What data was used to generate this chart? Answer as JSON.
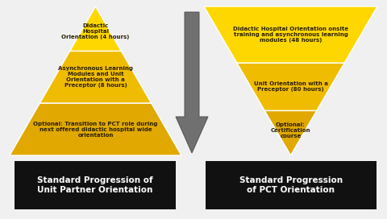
{
  "bg_color": "#f0f0f0",
  "gold1": "#FFD700",
  "gold2": "#F0BC00",
  "gold3": "#E0A800",
  "arrow_color": "#707070",
  "arrow_edge": "#505050",
  "black": "#111111",
  "white": "#ffffff",
  "dark_text": "#2a2000",
  "left_triangle": {
    "label": "Standard Progression of\nUnit Partner Orientation",
    "layers": [
      {
        "text": "Didactic\nHospital\nOrientation (4 hours)",
        "shade": "#FFD700"
      },
      {
        "text": "Asynchronous Learning\nModules and Unit\nOrientation with a\nPreceptor (8 hours)",
        "shade": "#F0BC00"
      },
      {
        "text": "Optional: Transition to PCT role during\nnext offered didactic hospital wide\norientation",
        "shade": "#E0A800"
      }
    ]
  },
  "right_triangle": {
    "label": "Standard Progression\nof PCT Orientation",
    "layers": [
      {
        "text": "Didactic Hospital Orientation onsite\ntraining and asynchronous learning\nmodules (48 hours)",
        "shade": "#FFD700"
      },
      {
        "text": "Unit Orientation with a\nPreceptor (80 hours)",
        "shade": "#F0BC00"
      },
      {
        "text": "Optional:\nCertification\ncourse",
        "shade": "#E0A800"
      }
    ]
  }
}
